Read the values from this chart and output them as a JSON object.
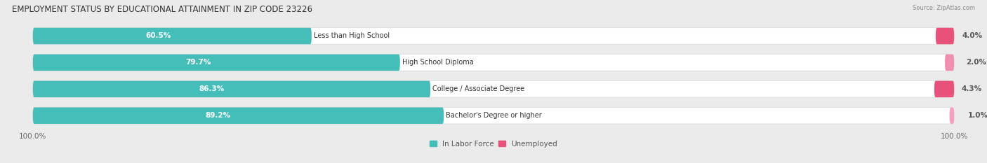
{
  "title": "EMPLOYMENT STATUS BY EDUCATIONAL ATTAINMENT IN ZIP CODE 23226",
  "source": "Source: ZipAtlas.com",
  "categories": [
    "Less than High School",
    "High School Diploma",
    "College / Associate Degree",
    "Bachelor's Degree or higher"
  ],
  "labor_force_pct": [
    60.5,
    79.7,
    86.3,
    89.2
  ],
  "unemployed_pct": [
    4.0,
    2.0,
    4.3,
    1.0
  ],
  "unemployed_colors": [
    "#E8527A",
    "#F090B0",
    "#E8527A",
    "#F4A0C0"
  ],
  "labor_force_color": "#45BDB8",
  "background_color": "#EBEBEB",
  "bar_background": "#FFFFFF",
  "track_edge_color": "#D8D8D8",
  "x_left_label": "100.0%",
  "x_right_label": "100.0%",
  "legend_labor": "In Labor Force",
  "legend_unemployed": "Unemployed",
  "title_fontsize": 8.5,
  "label_fontsize": 7.5,
  "cat_fontsize": 7.0,
  "bar_height": 0.62,
  "xlim": [
    -105,
    105
  ],
  "total_bar_width": 200
}
